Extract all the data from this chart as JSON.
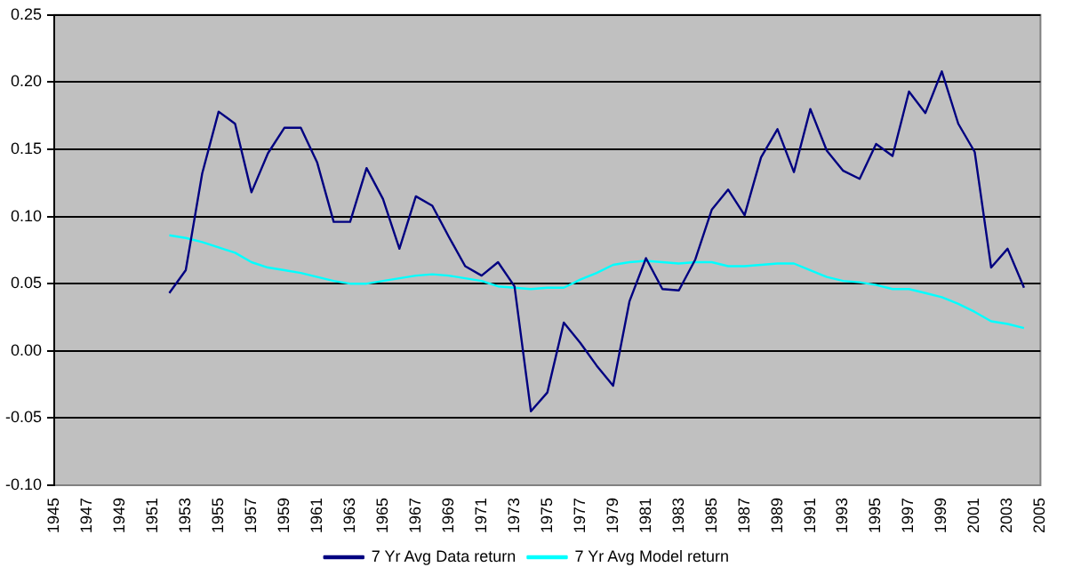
{
  "chart_data": {
    "type": "line",
    "x": [
      1952,
      1953,
      1954,
      1955,
      1956,
      1957,
      1958,
      1959,
      1960,
      1961,
      1962,
      1963,
      1964,
      1965,
      1966,
      1967,
      1968,
      1969,
      1970,
      1971,
      1972,
      1973,
      1974,
      1975,
      1976,
      1977,
      1978,
      1979,
      1980,
      1981,
      1982,
      1983,
      1984,
      1985,
      1986,
      1987,
      1988,
      1989,
      1990,
      1991,
      1992,
      1993,
      1994,
      1995,
      1996,
      1997,
      1998,
      1999,
      2000,
      2001,
      2002,
      2003,
      2004
    ],
    "series": [
      {
        "name": "7 Yr Avg Data return",
        "color": "#000080",
        "values": [
          0.043,
          0.06,
          0.132,
          0.178,
          0.169,
          0.118,
          0.147,
          0.166,
          0.166,
          0.14,
          0.096,
          0.096,
          0.136,
          0.113,
          0.076,
          0.115,
          0.108,
          0.085,
          0.063,
          0.056,
          0.066,
          0.048,
          -0.045,
          -0.031,
          0.021,
          0.006,
          -0.011,
          -0.026,
          0.037,
          0.069,
          0.046,
          0.045,
          0.068,
          0.105,
          0.12,
          0.101,
          0.144,
          0.165,
          0.133,
          0.18,
          0.149,
          0.134,
          0.128,
          0.154,
          0.145,
          0.193,
          0.177,
          0.208,
          0.169,
          0.148,
          0.062,
          0.076,
          0.047
        ]
      },
      {
        "name": "7 Yr Avg Model return",
        "color": "#00ffff",
        "values": [
          0.086,
          0.084,
          0.081,
          0.077,
          0.073,
          0.066,
          0.062,
          0.06,
          0.058,
          0.055,
          0.052,
          0.05,
          0.05,
          0.052,
          0.054,
          0.056,
          0.057,
          0.056,
          0.054,
          0.052,
          0.048,
          0.047,
          0.046,
          0.047,
          0.047,
          0.053,
          0.058,
          0.064,
          0.066,
          0.067,
          0.066,
          0.065,
          0.066,
          0.066,
          0.063,
          0.063,
          0.064,
          0.065,
          0.065,
          0.06,
          0.055,
          0.052,
          0.051,
          0.049,
          0.046,
          0.046,
          0.043,
          0.04,
          0.035,
          0.029,
          0.022,
          0.02,
          0.017
        ]
      }
    ],
    "xlim": [
      1945,
      2005
    ],
    "xticks": [
      1945,
      1947,
      1949,
      1951,
      1953,
      1955,
      1957,
      1959,
      1961,
      1963,
      1965,
      1967,
      1969,
      1971,
      1973,
      1975,
      1977,
      1979,
      1981,
      1983,
      1985,
      1987,
      1989,
      1991,
      1993,
      1995,
      1997,
      1999,
      2001,
      2003,
      2005
    ],
    "ylim": [
      -0.1,
      0.25
    ],
    "yticks": [
      {
        "value": -0.1,
        "label": "-0.10"
      },
      {
        "value": -0.05,
        "label": "-0.05"
      },
      {
        "value": 0,
        "label": "0.00"
      },
      {
        "value": 0.05,
        "label": "0.05"
      },
      {
        "value": 0.1,
        "label": "0.10"
      },
      {
        "value": 0.15,
        "label": "0.15"
      },
      {
        "value": 0.2,
        "label": "0.20"
      },
      {
        "value": 0.25,
        "label": "0.25"
      }
    ],
    "grid": "y",
    "legend": "bottom",
    "marker": "none",
    "line_style": "solid"
  }
}
